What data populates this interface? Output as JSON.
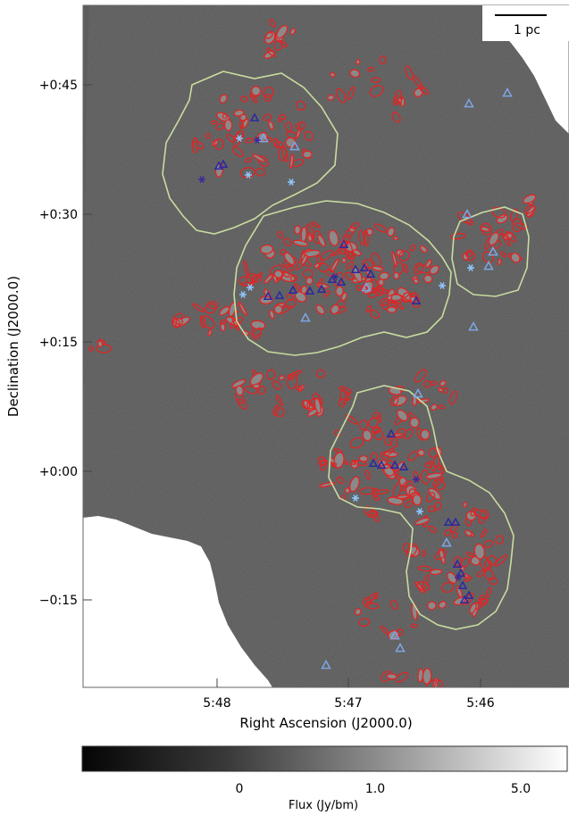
{
  "figure": {
    "scale_bar_label": "1 pc",
    "y_axis_label": "Declination (J2000.0)",
    "x_axis_label": "Right Ascension (J2000.0)",
    "y_ticks": [
      "+0:45",
      "+0:30",
      "+0:15",
      "+0:00",
      "−0:15"
    ],
    "x_ticks": [
      "5:48",
      "5:47",
      "5:46"
    ],
    "colorbar": {
      "label": "Flux (Jy/bm)",
      "ticks": [
        "0",
        "1.0",
        "5.0"
      ]
    },
    "colors": {
      "contour_red": "#e02525",
      "region_outline": "#c8dca0",
      "triangle_light": "#7fa6e6",
      "triangle_dark": "#2a2aa0",
      "star_light": "#8ec8ff",
      "star_dark": "#3a2a9a",
      "map_background": "#555555"
    },
    "marker_legend": {
      "light_triangle": "triangle-icon",
      "dark_triangle": "triangle-icon",
      "star": "asterisk-icon"
    }
  }
}
